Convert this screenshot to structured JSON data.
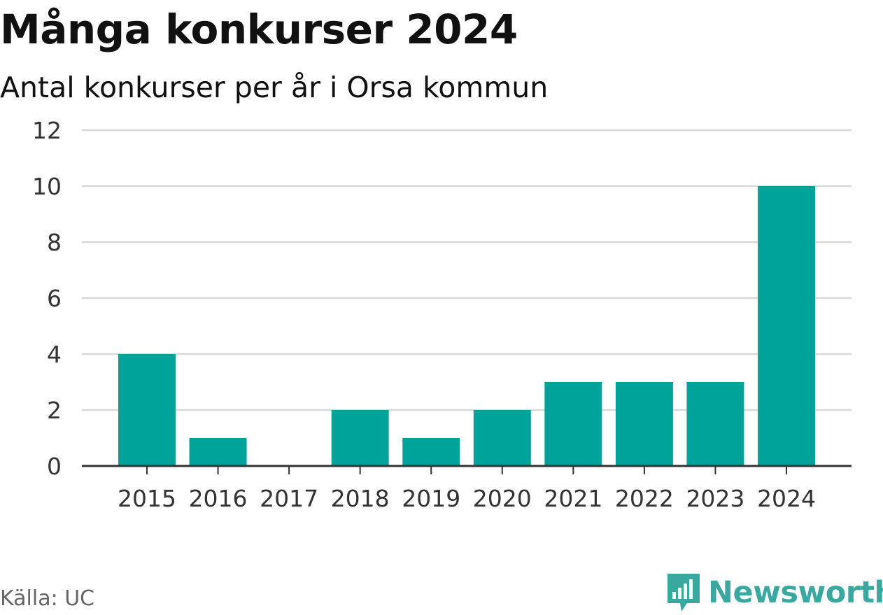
{
  "header": {
    "title": "Många konkurser 2024",
    "subtitle": "Antal konkurser per år i Orsa kommun"
  },
  "footer": {
    "source": "Källa: UC",
    "brand": "Newsworthy"
  },
  "colors": {
    "bar": "#00a399",
    "grid": "#d9d9d9",
    "axis": "#333333",
    "brand": "#3aa89e",
    "source_text": "#666666"
  },
  "chart_data": {
    "type": "bar",
    "title": "Många konkurser 2024",
    "subtitle": "Antal konkurser per år i Orsa kommun",
    "categories": [
      "2015",
      "2016",
      "2017",
      "2018",
      "2019",
      "2020",
      "2021",
      "2022",
      "2023",
      "2024"
    ],
    "values": [
      4,
      1,
      0,
      2,
      1,
      2,
      3,
      3,
      3,
      10
    ],
    "ylim": [
      0,
      12
    ],
    "yticks": [
      0,
      2,
      4,
      6,
      8,
      10,
      12
    ],
    "grid": true,
    "legend": "none"
  }
}
